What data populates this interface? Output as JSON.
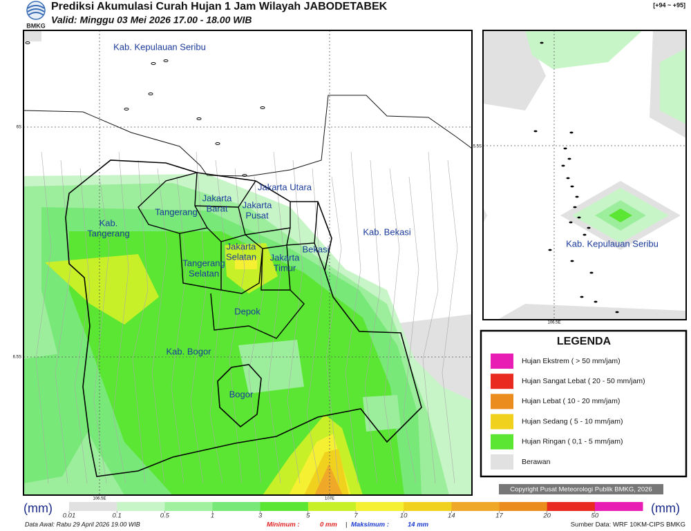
{
  "header": {
    "title": "Prediksi Akumulasi Curah Hujan 1 Jam Wilayah JABODETABEK",
    "valid": "Valid: Minggu 03 Mei 2026 17.00 - 18.00 WIB",
    "logo": "BMKG",
    "code": "[+94 ~ +95]"
  },
  "map": {
    "labels": [
      {
        "lines": [
          "Kab. Kepulauan Seribu"
        ]
      },
      {
        "lines": [
          "Jakarta Utara"
        ]
      },
      {
        "lines": [
          "Jakarta",
          "Barat"
        ]
      },
      {
        "lines": [
          "Jakarta",
          "Pusat"
        ]
      },
      {
        "lines": [
          "Tangerang"
        ]
      },
      {
        "lines": [
          "Kab.",
          "Tangerang"
        ]
      },
      {
        "lines": [
          "Jakarta",
          "Selatan"
        ]
      },
      {
        "lines": [
          "Tangerang",
          "Selatan"
        ]
      },
      {
        "lines": [
          "Jakarta",
          "Timur"
        ]
      },
      {
        "lines": [
          "Bekasi"
        ]
      },
      {
        "lines": [
          "Kab. Bekasi"
        ]
      },
      {
        "lines": [
          "Depok"
        ]
      },
      {
        "lines": [
          "Kab. Bogor"
        ]
      },
      {
        "lines": [
          "Bogor"
        ]
      }
    ],
    "lat": [
      "6S",
      "6.5S"
    ],
    "lon": [
      "106.5E",
      "107E"
    ]
  },
  "inset": {
    "label": "Kab. Kepulauan Seribu",
    "lat": "5.5S",
    "lon": "106.5E"
  },
  "legend": {
    "title": "LEGENDA",
    "items": [
      {
        "label": "Hujan Ekstrem ( > 50 mm/jam)",
        "color": "#e81eb4"
      },
      {
        "label": "Hujan Sangat Lebat ( 20 - 50 mm/jam)",
        "color": "#e82a20"
      },
      {
        "label": "Hujan Lebat ( 10 - 20 mm/jam)",
        "color": "#eb8c1e"
      },
      {
        "label": "Hujan Sedang ( 5 - 10 mm/jam)",
        "color": "#f0d21e"
      },
      {
        "label": "Hujan Ringan ( 0,1 - 5 mm/jam)",
        "color": "#5ae632"
      },
      {
        "label": "Berawan",
        "color": "#e1e1e1"
      }
    ]
  },
  "colorbar": {
    "unit": "(mm)",
    "ticks": [
      0.01,
      0.1,
      0.5,
      1,
      3,
      5,
      7,
      10,
      14,
      17,
      20,
      50
    ],
    "colors": [
      "#e1e1e1",
      "#c8f5c8",
      "#a0f0a0",
      "#78e878",
      "#5ae632",
      "#c8f028",
      "#f5f032",
      "#f0d21e",
      "#f0a828",
      "#eb8c1e",
      "#e82a20",
      "#e81eb4"
    ]
  },
  "footer": {
    "data_awal": "Data Awal: Rabu 29 April 2026 19.00 WIB",
    "min_label": "Minimum :",
    "min_value": "0 mm",
    "separator": "|",
    "max_label": "Maksimum :",
    "max_value": "14 mm",
    "source": "Sumber Data: WRF 10KM-CIPS BMKG",
    "copyright": "Copyright Pusat Meteorologi Publik BMKG, 2026"
  }
}
